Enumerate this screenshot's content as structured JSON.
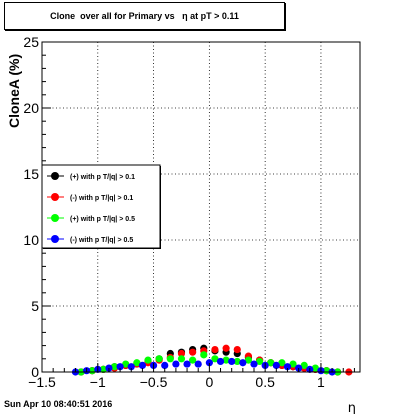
{
  "title": "Clone  over all for Primary vs   η at pT > 0.11",
  "timestamp": "Sun Apr 10 08:40:51 2016",
  "colors": {
    "frame": "#000000",
    "grid": "#000000",
    "series_black": "#000000",
    "series_red": "#ff0000",
    "series_green": "#00ff00",
    "series_blue": "#0000ff"
  },
  "chart_data": {
    "type": "scatter",
    "title": "Clone  over all for Primary vs   η at pT > 0.11",
    "xlabel": "η",
    "ylabel": "CloneA (%)",
    "xlim": [
      -1.5,
      1.35
    ],
    "ylim": [
      0,
      25
    ],
    "grid": true,
    "legend_position": "middle-left",
    "x_ticks": [
      -1.5,
      -1,
      -0.5,
      0,
      0.5,
      1
    ],
    "x_tick_labels": [
      "−1.5",
      "−1",
      "−0.5",
      "0",
      "0.5",
      "1"
    ],
    "y_ticks": [
      0,
      5,
      10,
      15,
      20,
      25
    ],
    "y_tick_labels": [
      "0",
      "5",
      "10",
      "15",
      "20",
      "25"
    ],
    "series": [
      {
        "name": "(+) with p T/|q| > 0.1",
        "color": "#000000",
        "x": [
          -1.15,
          -1.05,
          -0.95,
          -0.85,
          -0.75,
          -0.65,
          -0.55,
          -0.45,
          -0.35,
          -0.25,
          -0.15,
          -0.05,
          0.05,
          0.15,
          0.25,
          0.35,
          0.45,
          0.55,
          0.65,
          0.75,
          0.85,
          0.95,
          1.05,
          1.15
        ],
        "y": [
          0.0,
          0.1,
          0.2,
          0.4,
          0.5,
          0.6,
          0.8,
          1.0,
          1.4,
          1.5,
          1.7,
          1.8,
          1.6,
          1.5,
          1.4,
          1.1,
          0.9,
          0.7,
          0.5,
          0.4,
          0.3,
          0.2,
          0.1,
          0.0
        ]
      },
      {
        "name": "(-) with p T/|q| > 0.1",
        "color": "#ff0000",
        "x": [
          -1.15,
          -1.05,
          -0.95,
          -0.85,
          -0.75,
          -0.65,
          -0.55,
          -0.45,
          -0.35,
          -0.25,
          -0.15,
          -0.05,
          0.05,
          0.15,
          0.25,
          0.35,
          0.45,
          0.55,
          0.65,
          0.75,
          0.85,
          0.95,
          1.05,
          1.15,
          1.25
        ],
        "y": [
          0.0,
          0.1,
          0.2,
          0.3,
          0.5,
          0.6,
          0.7,
          0.9,
          1.1,
          1.4,
          1.5,
          1.6,
          1.7,
          1.8,
          1.7,
          1.2,
          0.9,
          0.7,
          0.5,
          0.4,
          0.3,
          0.2,
          0.1,
          0.0,
          0.0
        ]
      },
      {
        "name": "(+) with p T/|q| > 0.5",
        "color": "#00ff00",
        "x": [
          -1.15,
          -1.05,
          -0.95,
          -0.85,
          -0.75,
          -0.65,
          -0.55,
          -0.45,
          -0.35,
          -0.25,
          -0.15,
          -0.05,
          0.05,
          0.15,
          0.25,
          0.35,
          0.45,
          0.55,
          0.65,
          0.75,
          0.85,
          0.95,
          1.05,
          1.15
        ],
        "y": [
          0.0,
          0.1,
          0.2,
          0.4,
          0.6,
          0.7,
          0.9,
          1.0,
          1.0,
          1.0,
          0.9,
          1.3,
          1.0,
          0.9,
          0.8,
          0.9,
          0.8,
          0.7,
          0.7,
          0.6,
          0.5,
          0.3,
          0.1,
          0.0
        ]
      },
      {
        "name": "(-) with p T/|q| > 0.5",
        "color": "#0000ff",
        "x": [
          -1.2,
          -1.1,
          -1.0,
          -0.9,
          -0.8,
          -0.7,
          -0.6,
          -0.5,
          -0.4,
          -0.3,
          -0.2,
          -0.1,
          0.0,
          0.1,
          0.2,
          0.3,
          0.4,
          0.5,
          0.6,
          0.7,
          0.8,
          0.9,
          1.0,
          1.1
        ],
        "y": [
          0.0,
          0.1,
          0.2,
          0.3,
          0.4,
          0.4,
          0.5,
          0.5,
          0.5,
          0.6,
          0.6,
          0.6,
          0.7,
          0.8,
          0.8,
          0.7,
          0.6,
          0.5,
          0.5,
          0.4,
          0.3,
          0.2,
          0.1,
          0.0
        ]
      }
    ]
  }
}
